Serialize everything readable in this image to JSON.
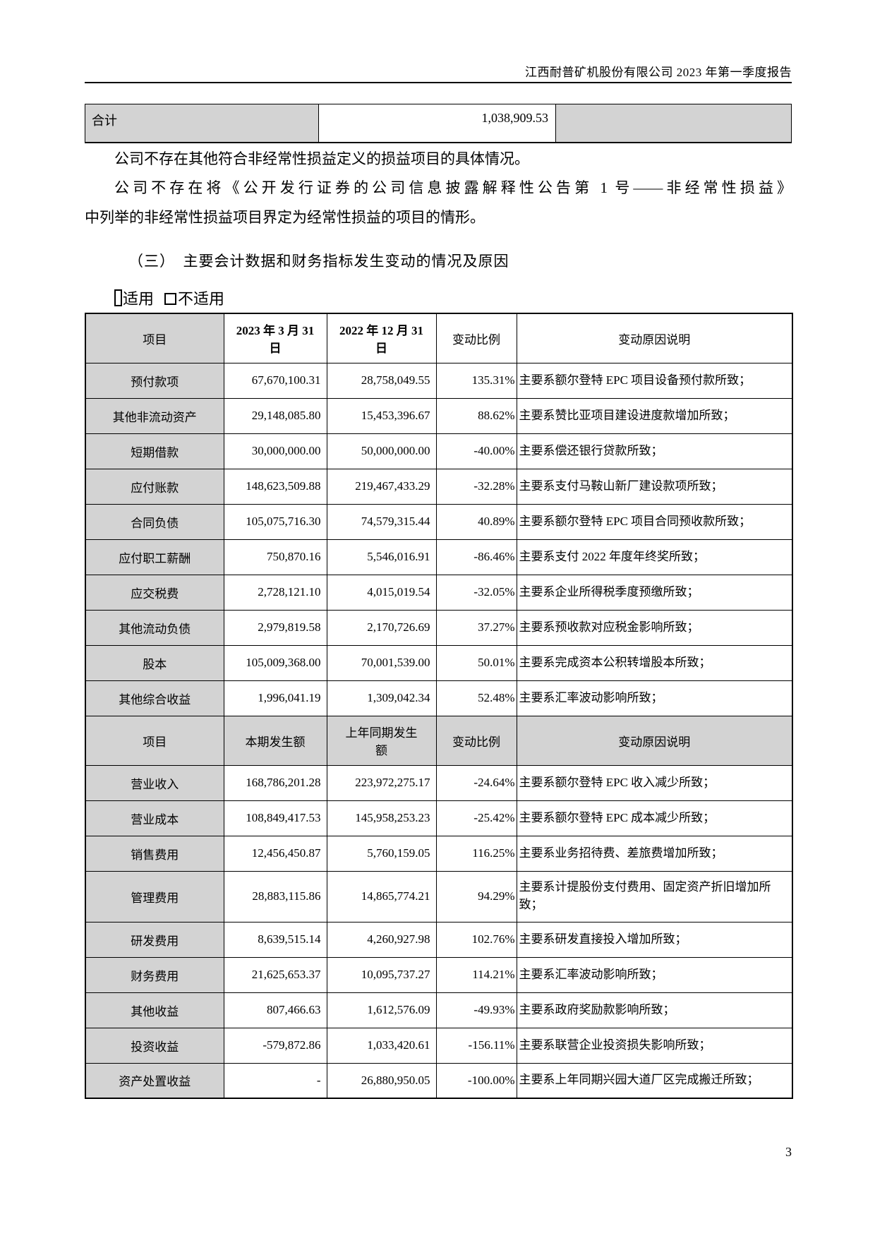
{
  "header": {
    "title": "江西耐普矿机股份有限公司 2023 年第一季度报告"
  },
  "totals_row": {
    "label": "合计",
    "value": "1,038,909.53",
    "note": ""
  },
  "paragraphs": {
    "p1": "公司不存在其他符合非经常性损益定义的损益项目的具体情况。",
    "p2_line1": "公司不存在将《公开发行证券的公司信息披露解释性公告第 1 号——非经常性损益》",
    "p2_line2": "中列举的非经常性损益项目界定为经常性损益的项目的情形。"
  },
  "section_heading": "（三）　主要会计数据和财务指标发生变动的情况及原因",
  "applicability": {
    "applicable_label": "适用",
    "not_applicable_label": "不适用"
  },
  "main_table": {
    "section1": {
      "header": {
        "item": "项目",
        "current": "2023 年 3 月 31\n日",
        "prior": "2022 年 12 月 31\n日",
        "ratio": "变动比例",
        "reason": "变动原因说明"
      },
      "rows": [
        {
          "item": "预付款项",
          "current": "67,670,100.31",
          "prior": "28,758,049.55",
          "ratio": "135.31%",
          "reason": "主要系额尔登特 EPC 项目设备预付款所致；"
        },
        {
          "item": "其他非流动资产",
          "current": "29,148,085.80",
          "prior": "15,453,396.67",
          "ratio": "88.62%",
          "reason": "主要系赞比亚项目建设进度款增加所致；"
        },
        {
          "item": "短期借款",
          "current": "30,000,000.00",
          "prior": "50,000,000.00",
          "ratio": "-40.00%",
          "reason": "主要系偿还银行贷款所致；"
        },
        {
          "item": "应付账款",
          "current": "148,623,509.88",
          "prior": "219,467,433.29",
          "ratio": "-32.28%",
          "reason": "主要系支付马鞍山新厂建设款项所致；"
        },
        {
          "item": "合同负债",
          "current": "105,075,716.30",
          "prior": "74,579,315.44",
          "ratio": "40.89%",
          "reason": "主要系额尔登特 EPC 项目合同预收款所致；"
        },
        {
          "item": "应付职工薪酬",
          "current": "750,870.16",
          "prior": "5,546,016.91",
          "ratio": "-86.46%",
          "reason": "主要系支付 2022 年度年终奖所致；"
        },
        {
          "item": "应交税费",
          "current": "2,728,121.10",
          "prior": "4,015,019.54",
          "ratio": "-32.05%",
          "reason": "主要系企业所得税季度预缴所致；"
        },
        {
          "item": "其他流动负债",
          "current": "2,979,819.58",
          "prior": "2,170,726.69",
          "ratio": "37.27%",
          "reason": "主要系预收款对应税金影响所致；"
        },
        {
          "item": "股本",
          "current": "105,009,368.00",
          "prior": "70,001,539.00",
          "ratio": "50.01%",
          "reason": "主要系完成资本公积转增股本所致；"
        },
        {
          "item": "其他综合收益",
          "current": "1,996,041.19",
          "prior": "1,309,042.34",
          "ratio": "52.48%",
          "reason": "主要系汇率波动影响所致；"
        }
      ]
    },
    "section2": {
      "header": {
        "item": "项目",
        "current": "本期发生额",
        "prior": "上年同期发生\n额",
        "ratio": "变动比例",
        "reason": "变动原因说明"
      },
      "rows": [
        {
          "item": "营业收入",
          "current": "168,786,201.28",
          "prior": "223,972,275.17",
          "ratio": "-24.64%",
          "reason": "主要系额尔登特 EPC 收入减少所致；"
        },
        {
          "item": "营业成本",
          "current": "108,849,417.53",
          "prior": "145,958,253.23",
          "ratio": "-25.42%",
          "reason": "主要系额尔登特 EPC 成本减少所致；"
        },
        {
          "item": "销售费用",
          "current": "12,456,450.87",
          "prior": "5,760,159.05",
          "ratio": "116.25%",
          "reason": "主要系业务招待费、差旅费增加所致；"
        },
        {
          "item": "管理费用",
          "current": "28,883,115.86",
          "prior": "14,865,774.21",
          "ratio": "94.29%",
          "reason": "主要系计提股份支付费用、固定资产折旧增加所致；",
          "tall": true
        },
        {
          "item": "研发费用",
          "current": "8,639,515.14",
          "prior": "4,260,927.98",
          "ratio": "102.76%",
          "reason": "主要系研发直接投入增加所致；"
        },
        {
          "item": "财务费用",
          "current": "21,625,653.37",
          "prior": "10,095,737.27",
          "ratio": "114.21%",
          "reason": "主要系汇率波动影响所致；"
        },
        {
          "item": "其他收益",
          "current": "807,466.63",
          "prior": "1,612,576.09",
          "ratio": "-49.93%",
          "reason": "主要系政府奖励款影响所致；"
        },
        {
          "item": "投资收益",
          "current": "-579,872.86",
          "prior": "1,033,420.61",
          "ratio": "-156.11%",
          "reason": "主要系联营企业投资损失影响所致；"
        },
        {
          "item": "资产处置收益",
          "current": "-",
          "prior": "26,880,950.05",
          "ratio": "-100.00%",
          "reason": "主要系上年同期兴园大道厂区完成搬迁所致；"
        }
      ]
    }
  },
  "footer": {
    "page_number": "3"
  }
}
